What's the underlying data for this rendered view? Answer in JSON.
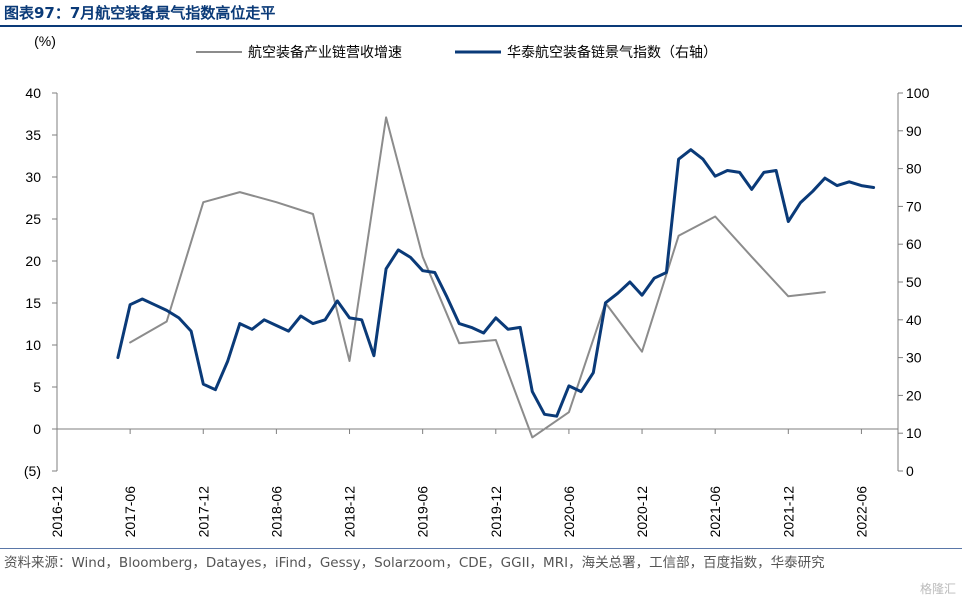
{
  "figure_label": "图表97：",
  "title": "7月航空装备景气指数高位走平",
  "source": "资料来源：Wind，Bloomberg，Datayes，iFind，Gessy，Solarzoom，CDE，GGII，MRI，海关总署，工信部，百度指数，华泰研究",
  "watermark": "格隆汇",
  "chart_data": {
    "type": "line",
    "ylabel": "(%)",
    "ylim": [
      -5,
      40
    ],
    "yticks": [
      -5,
      0,
      5,
      10,
      15,
      20,
      25,
      30,
      35,
      40
    ],
    "ytick_labels": [
      "(5)",
      "0",
      "5",
      "10",
      "15",
      "20",
      "25",
      "30",
      "35",
      "40"
    ],
    "y2lim": [
      0,
      100
    ],
    "y2ticks": [
      0,
      10,
      20,
      30,
      40,
      50,
      60,
      70,
      80,
      90,
      100
    ],
    "xlim": [
      "2016-12",
      "2022-09"
    ],
    "xticks": [
      "2016-12",
      "2017-06",
      "2017-12",
      "2018-06",
      "2018-12",
      "2019-06",
      "2019-12",
      "2020-06",
      "2020-12",
      "2021-06",
      "2021-12",
      "2022-06"
    ],
    "legend_position": "top",
    "grid": false,
    "series": [
      {
        "name": "航空装备产业链营收增速",
        "axis": "left",
        "color": "#8c8c8c",
        "x": [
          "2017-06",
          "2017-09",
          "2017-12",
          "2018-03",
          "2018-06",
          "2018-09",
          "2018-12",
          "2019-03",
          "2019-06",
          "2019-09",
          "2019-12",
          "2020-03",
          "2020-06",
          "2020-09",
          "2020-12",
          "2021-03",
          "2021-06",
          "2021-09",
          "2021-12",
          "2022-03"
        ],
        "values": [
          10.3,
          12.8,
          27.0,
          28.2,
          27.0,
          25.6,
          8.1,
          37.1,
          20.5,
          10.2,
          10.6,
          -1.0,
          2.0,
          15.0,
          9.2,
          23.0,
          25.3,
          20.5,
          15.8,
          16.3
        ]
      },
      {
        "name": "华泰航空装备链景气指数（右轴）",
        "axis": "right",
        "color": "#0a3a78",
        "x": [
          "2017-05",
          "2017-06",
          "2017-07",
          "2017-08",
          "2017-09",
          "2017-10",
          "2017-11",
          "2017-12",
          "2018-01",
          "2018-02",
          "2018-03",
          "2018-04",
          "2018-05",
          "2018-06",
          "2018-07",
          "2018-08",
          "2018-09",
          "2018-10",
          "2018-11",
          "2018-12",
          "2019-01",
          "2019-02",
          "2019-03",
          "2019-04",
          "2019-05",
          "2019-06",
          "2019-07",
          "2019-08",
          "2019-09",
          "2019-10",
          "2019-11",
          "2019-12",
          "2020-01",
          "2020-02",
          "2020-03",
          "2020-04",
          "2020-05",
          "2020-06",
          "2020-07",
          "2020-08",
          "2020-09",
          "2020-10",
          "2020-11",
          "2020-12",
          "2021-01",
          "2021-02",
          "2021-03",
          "2021-04",
          "2021-05",
          "2021-06",
          "2021-07",
          "2021-08",
          "2021-09",
          "2021-10",
          "2021-11",
          "2021-12",
          "2022-01",
          "2022-02",
          "2022-03",
          "2022-04",
          "2022-05",
          "2022-06",
          "2022-07"
        ],
        "values": [
          30,
          44,
          45.5,
          44,
          42.5,
          40.5,
          37,
          23,
          21.5,
          29,
          39,
          37.5,
          40,
          38.5,
          37,
          41,
          39,
          40,
          45,
          40.5,
          40,
          30.5,
          53.5,
          58.5,
          56.5,
          53,
          52.5,
          46,
          39,
          38,
          36.5,
          40.5,
          37.5,
          38,
          21,
          15,
          14.5,
          22.5,
          21,
          26,
          44.5,
          47,
          50,
          46.5,
          51,
          52.5,
          82.5,
          85,
          82.5,
          78,
          79.5,
          79,
          74.5,
          79,
          79.5,
          66,
          71,
          74,
          77.5,
          75.5,
          76.5,
          75.5,
          75
        ]
      }
    ]
  }
}
